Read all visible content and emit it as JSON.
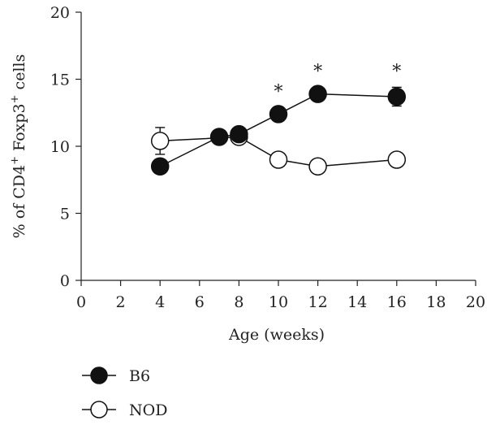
{
  "chart_data": {
    "type": "line",
    "xlabel": "Age (weeks)",
    "ylabel_parts": [
      "% of CD4",
      "+",
      " Foxp3",
      "+",
      " cells"
    ],
    "xlim": [
      0,
      20
    ],
    "ylim": [
      0,
      20
    ],
    "xticks": [
      0,
      2,
      4,
      6,
      8,
      10,
      12,
      14,
      16,
      18,
      20
    ],
    "yticks": [
      0,
      5,
      10,
      15,
      20
    ],
    "grid": false,
    "legend_position": "bottom-left",
    "series": [
      {
        "name": "B6",
        "marker": "filled-circle",
        "color": "#111111",
        "x": [
          4,
          7,
          8,
          10,
          12,
          16
        ],
        "y": [
          8.5,
          10.7,
          10.9,
          12.4,
          13.9,
          13.7
        ],
        "err": [
          0,
          0,
          0,
          0.3,
          0,
          0.7
        ]
      },
      {
        "name": "NOD",
        "marker": "open-circle",
        "color": "#ffffff",
        "x": [
          4,
          8,
          10,
          12,
          16
        ],
        "y": [
          10.4,
          10.7,
          9.0,
          8.5,
          9.0
        ],
        "err": [
          1.0,
          0,
          0,
          0,
          0
        ]
      }
    ],
    "annotations": [
      {
        "text": "*",
        "x": 10,
        "y": 14.5
      },
      {
        "text": "*",
        "x": 12,
        "y": 16.0
      },
      {
        "text": "*",
        "x": 16,
        "y": 16.0
      }
    ]
  }
}
